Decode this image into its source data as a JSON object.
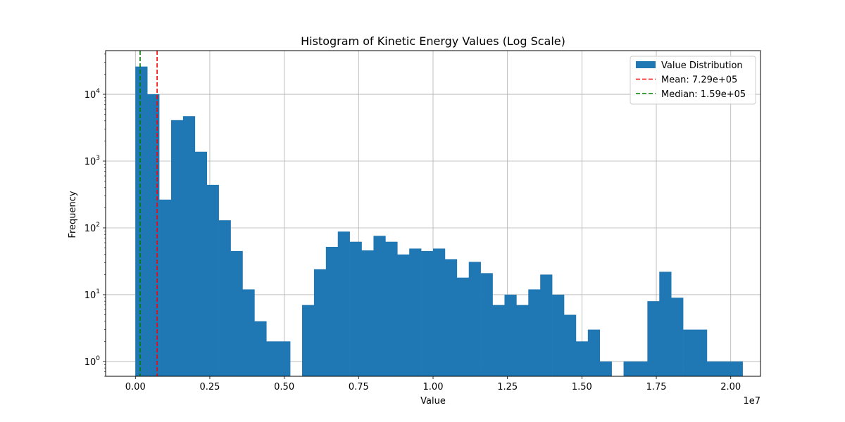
{
  "chart_data": {
    "type": "bar",
    "title": "Histogram of Kinetic Energy Values (Log Scale)",
    "xlabel": "Value",
    "ylabel": "Frequency",
    "x_offset_label": "1e7",
    "yscale": "log",
    "grid": true,
    "legend_position": "top-right",
    "xlim": [
      -0.1,
      2.1
    ],
    "ylim": [
      0.6,
      45000
    ],
    "x_ticks": [
      0.0,
      0.25,
      0.5,
      0.75,
      1.0,
      1.25,
      1.5,
      1.75,
      2.0
    ],
    "x_tick_labels": [
      "0.00",
      "0.25",
      "0.50",
      "0.75",
      "1.00",
      "1.25",
      "1.50",
      "1.75",
      "2.00"
    ],
    "y_ticks": [
      1,
      10,
      100,
      1000,
      10000
    ],
    "y_tick_labels": [
      {
        "base": "10",
        "exp": "0"
      },
      {
        "base": "10",
        "exp": "1"
      },
      {
        "base": "10",
        "exp": "2"
      },
      {
        "base": "10",
        "exp": "3"
      },
      {
        "base": "10",
        "exp": "4"
      }
    ],
    "bin_start": 0.0,
    "bin_width": 0.04,
    "series": [
      {
        "name": "Value Distribution",
        "color": "#1f77b4",
        "values": [
          26000,
          10000,
          265,
          4100,
          4700,
          1380,
          440,
          130,
          45,
          12,
          4,
          2,
          2,
          0,
          7,
          24,
          52,
          88,
          62,
          46,
          76,
          62,
          40,
          49,
          45,
          49,
          34,
          18,
          31,
          21,
          7,
          10,
          7,
          12,
          20,
          10,
          5,
          2,
          3,
          1,
          0,
          1,
          1,
          8,
          22,
          9,
          3,
          3,
          1,
          1,
          1
        ]
      }
    ],
    "vlines": [
      {
        "name": "Mean: 7.29e+05",
        "x": 0.0729,
        "color": "#ff0000",
        "style": "dashed"
      },
      {
        "name": "Median: 1.59e+05",
        "x": 0.0159,
        "color": "#008000",
        "style": "dashed"
      }
    ]
  }
}
